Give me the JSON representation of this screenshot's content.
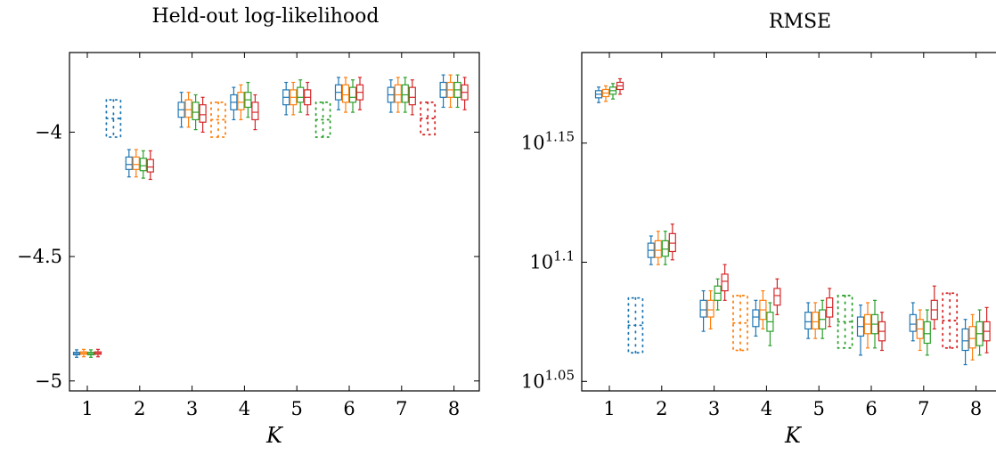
{
  "colors": {
    "c1": "#1f77b4",
    "c2": "#ff7f0e",
    "c3": "#2ca02c",
    "c4": "#d62728"
  },
  "chart_data": [
    {
      "type": "box",
      "title": "Held-out log-likelihood",
      "xlabel": "K",
      "ylabel": "",
      "xticks": [
        "1",
        "2",
        "3",
        "4",
        "5",
        "6",
        "7",
        "8"
      ],
      "yticks": [
        {
          "value": -4,
          "label": "−4"
        },
        {
          "value": -4.5,
          "label": "−4.5"
        },
        {
          "value": -5,
          "label": "−5"
        }
      ],
      "ylim": [
        -5.04,
        -3.68
      ],
      "groups": [
        {
          "k": 1,
          "boxes": [
            {
              "color": "c1",
              "q1": -4.895,
              "med": -4.89,
              "q3": -4.885,
              "lo": -4.905,
              "hi": -4.875
            },
            {
              "color": "c2",
              "q1": -4.893,
              "med": -4.888,
              "q3": -4.883,
              "lo": -4.903,
              "hi": -4.873
            },
            {
              "color": "c3",
              "q1": -4.895,
              "med": -4.89,
              "q3": -4.885,
              "lo": -4.905,
              "hi": -4.875
            },
            {
              "color": "c4",
              "q1": -4.893,
              "med": -4.888,
              "q3": -4.883,
              "lo": -4.903,
              "hi": -4.873
            }
          ]
        },
        {
          "k": 1.5,
          "dotted": true,
          "color": "c1",
          "lo": -4.02,
          "hi": -3.87
        },
        {
          "k": 2,
          "boxes": [
            {
              "color": "c1",
              "q1": -4.15,
              "med": -4.13,
              "q3": -4.1,
              "lo": -4.18,
              "hi": -4.07
            },
            {
              "color": "c2",
              "q1": -4.15,
              "med": -4.13,
              "q3": -4.1,
              "lo": -4.18,
              "hi": -4.07
            },
            {
              "color": "c3",
              "q1": -4.155,
              "med": -4.135,
              "q3": -4.105,
              "lo": -4.185,
              "hi": -4.075
            },
            {
              "color": "c4",
              "q1": -4.16,
              "med": -4.14,
              "q3": -4.11,
              "lo": -4.19,
              "hi": -4.075
            }
          ]
        },
        {
          "k": 3,
          "boxes": [
            {
              "color": "c1",
              "q1": -3.94,
              "med": -3.91,
              "q3": -3.88,
              "lo": -3.98,
              "hi": -3.84
            },
            {
              "color": "c2",
              "q1": -3.94,
              "med": -3.91,
              "q3": -3.87,
              "lo": -3.98,
              "hi": -3.84
            },
            {
              "color": "c3",
              "q1": -3.95,
              "med": -3.92,
              "q3": -3.88,
              "lo": -3.99,
              "hi": -3.85
            },
            {
              "color": "c4",
              "q1": -3.96,
              "med": -3.93,
              "q3": -3.89,
              "lo": -4.0,
              "hi": -3.86
            }
          ]
        },
        {
          "k": 3.5,
          "dotted": true,
          "color": "c2",
          "lo": -4.02,
          "hi": -3.88
        },
        {
          "k": 4,
          "boxes": [
            {
              "color": "c1",
              "q1": -3.91,
              "med": -3.88,
              "q3": -3.85,
              "lo": -3.95,
              "hi": -3.82
            },
            {
              "color": "c2",
              "q1": -3.91,
              "med": -3.88,
              "q3": -3.84,
              "lo": -3.95,
              "hi": -3.81
            },
            {
              "color": "c3",
              "q1": -3.9,
              "med": -3.87,
              "q3": -3.84,
              "lo": -3.94,
              "hi": -3.8
            },
            {
              "color": "c4",
              "q1": -3.95,
              "med": -3.92,
              "q3": -3.88,
              "lo": -3.99,
              "hi": -3.85
            }
          ]
        },
        {
          "k": 5,
          "boxes": [
            {
              "color": "c1",
              "q1": -3.89,
              "med": -3.86,
              "q3": -3.83,
              "lo": -3.93,
              "hi": -3.8
            },
            {
              "color": "c2",
              "q1": -3.89,
              "med": -3.86,
              "q3": -3.83,
              "lo": -3.93,
              "hi": -3.8
            },
            {
              "color": "c3",
              "q1": -3.88,
              "med": -3.86,
              "q3": -3.82,
              "lo": -3.92,
              "hi": -3.79
            },
            {
              "color": "c4",
              "q1": -3.89,
              "med": -3.86,
              "q3": -3.83,
              "lo": -3.93,
              "hi": -3.8
            }
          ]
        },
        {
          "k": 5.5,
          "dotted": true,
          "color": "c3",
          "lo": -4.02,
          "hi": -3.88
        },
        {
          "k": 6,
          "boxes": [
            {
              "color": "c1",
              "q1": -3.87,
              "med": -3.84,
              "q3": -3.81,
              "lo": -3.91,
              "hi": -3.78
            },
            {
              "color": "c2",
              "q1": -3.88,
              "med": -3.85,
              "q3": -3.81,
              "lo": -3.92,
              "hi": -3.78
            },
            {
              "color": "c3",
              "q1": -3.88,
              "med": -3.86,
              "q3": -3.82,
              "lo": -3.92,
              "hi": -3.79
            },
            {
              "color": "c4",
              "q1": -3.87,
              "med": -3.84,
              "q3": -3.81,
              "lo": -3.91,
              "hi": -3.78
            }
          ]
        },
        {
          "k": 7,
          "boxes": [
            {
              "color": "c1",
              "q1": -3.88,
              "med": -3.85,
              "q3": -3.82,
              "lo": -3.92,
              "hi": -3.79
            },
            {
              "color": "c2",
              "q1": -3.88,
              "med": -3.85,
              "q3": -3.81,
              "lo": -3.92,
              "hi": -3.78
            },
            {
              "color": "c3",
              "q1": -3.88,
              "med": -3.85,
              "q3": -3.81,
              "lo": -3.92,
              "hi": -3.78
            },
            {
              "color": "c4",
              "q1": -3.89,
              "med": -3.86,
              "q3": -3.82,
              "lo": -3.93,
              "hi": -3.79
            }
          ]
        },
        {
          "k": 7.5,
          "dotted": true,
          "color": "c4",
          "lo": -4.01,
          "hi": -3.88
        },
        {
          "k": 8,
          "boxes": [
            {
              "color": "c1",
              "q1": -3.86,
              "med": -3.83,
              "q3": -3.8,
              "lo": -3.9,
              "hi": -3.77
            },
            {
              "color": "c2",
              "q1": -3.86,
              "med": -3.83,
              "q3": -3.8,
              "lo": -3.9,
              "hi": -3.77
            },
            {
              "color": "c3",
              "q1": -3.86,
              "med": -3.83,
              "q3": -3.8,
              "lo": -3.9,
              "hi": -3.77
            },
            {
              "color": "c4",
              "q1": -3.87,
              "med": -3.84,
              "q3": -3.81,
              "lo": -3.91,
              "hi": -3.78
            }
          ]
        }
      ]
    },
    {
      "type": "box",
      "title": "RMSE",
      "xlabel": "K",
      "ylabel": "",
      "yscale": "log",
      "xticks": [
        "1",
        "2",
        "3",
        "4",
        "5",
        "6",
        "7",
        "8"
      ],
      "yticks": [
        {
          "value": 1.15,
          "base": "10",
          "exp": "1.15"
        },
        {
          "value": 1.1,
          "base": "10",
          "exp": "1.1"
        },
        {
          "value": 1.05,
          "base": "10",
          "exp": "1.05"
        }
      ],
      "ylim": [
        1.046,
        1.188
      ],
      "groups": [
        {
          "k": 1,
          "boxes": [
            {
              "color": "c1",
              "q1": 1.169,
              "med": 1.1705,
              "q3": 1.172,
              "lo": 1.167,
              "hi": 1.1735
            },
            {
              "color": "c2",
              "q1": 1.1695,
              "med": 1.171,
              "q3": 1.1725,
              "lo": 1.1675,
              "hi": 1.174
            },
            {
              "color": "c3",
              "q1": 1.1705,
              "med": 1.172,
              "q3": 1.1735,
              "lo": 1.1685,
              "hi": 1.175
            },
            {
              "color": "c4",
              "q1": 1.1725,
              "med": 1.174,
              "q3": 1.1755,
              "lo": 1.1705,
              "hi": 1.177
            }
          ]
        },
        {
          "k": 1.5,
          "dotted": true,
          "color": "c1",
          "lo": 1.062,
          "hi": 1.085
        },
        {
          "k": 2,
          "boxes": [
            {
              "color": "c1",
              "q1": 1.102,
              "med": 1.105,
              "q3": 1.108,
              "lo": 1.099,
              "hi": 1.111
            },
            {
              "color": "c2",
              "q1": 1.102,
              "med": 1.105,
              "q3": 1.109,
              "lo": 1.099,
              "hi": 1.113
            },
            {
              "color": "c3",
              "q1": 1.1025,
              "med": 1.1055,
              "q3": 1.109,
              "lo": 1.099,
              "hi": 1.113
            },
            {
              "color": "c4",
              "q1": 1.1045,
              "med": 1.108,
              "q3": 1.112,
              "lo": 1.101,
              "hi": 1.116
            }
          ]
        },
        {
          "k": 3,
          "boxes": [
            {
              "color": "c1",
              "q1": 1.077,
              "med": 1.08,
              "q3": 1.084,
              "lo": 1.071,
              "hi": 1.088
            },
            {
              "color": "c2",
              "q1": 1.077,
              "med": 1.08,
              "q3": 1.084,
              "lo": 1.072,
              "hi": 1.088
            },
            {
              "color": "c3",
              "q1": 1.084,
              "med": 1.087,
              "q3": 1.09,
              "lo": 1.08,
              "hi": 1.093
            },
            {
              "color": "c4",
              "q1": 1.088,
              "med": 1.092,
              "q3": 1.095,
              "lo": 1.084,
              "hi": 1.099
            }
          ]
        },
        {
          "k": 3.5,
          "dotted": true,
          "color": "c2",
          "lo": 1.063,
          "hi": 1.086
        },
        {
          "k": 4,
          "boxes": [
            {
              "color": "c1",
              "q1": 1.073,
              "med": 1.077,
              "q3": 1.08,
              "lo": 1.069,
              "hi": 1.084
            },
            {
              "color": "c2",
              "q1": 1.076,
              "med": 1.08,
              "q3": 1.084,
              "lo": 1.072,
              "hi": 1.088
            },
            {
              "color": "c3",
              "q1": 1.071,
              "med": 1.075,
              "q3": 1.079,
              "lo": 1.065,
              "hi": 1.083
            },
            {
              "color": "c4",
              "q1": 1.082,
              "med": 1.086,
              "q3": 1.089,
              "lo": 1.078,
              "hi": 1.093
            }
          ]
        },
        {
          "k": 5,
          "boxes": [
            {
              "color": "c1",
              "q1": 1.072,
              "med": 1.075,
              "q3": 1.079,
              "lo": 1.068,
              "hi": 1.083
            },
            {
              "color": "c2",
              "q1": 1.072,
              "med": 1.075,
              "q3": 1.079,
              "lo": 1.068,
              "hi": 1.083
            },
            {
              "color": "c3",
              "q1": 1.072,
              "med": 1.076,
              "q3": 1.08,
              "lo": 1.068,
              "hi": 1.084
            },
            {
              "color": "c4",
              "q1": 1.077,
              "med": 1.081,
              "q3": 1.085,
              "lo": 1.073,
              "hi": 1.089
            }
          ]
        },
        {
          "k": 5.5,
          "dotted": true,
          "color": "c3",
          "lo": 1.064,
          "hi": 1.086
        },
        {
          "k": 6,
          "boxes": [
            {
              "color": "c1",
              "q1": 1.069,
              "med": 1.073,
              "q3": 1.077,
              "lo": 1.061,
              "hi": 1.082
            },
            {
              "color": "c2",
              "q1": 1.07,
              "med": 1.074,
              "q3": 1.078,
              "lo": 1.064,
              "hi": 1.083
            },
            {
              "color": "c3",
              "q1": 1.07,
              "med": 1.074,
              "q3": 1.078,
              "lo": 1.064,
              "hi": 1.084
            },
            {
              "color": "c4",
              "q1": 1.067,
              "med": 1.071,
              "q3": 1.075,
              "lo": 1.063,
              "hi": 1.079
            }
          ]
        },
        {
          "k": 7,
          "boxes": [
            {
              "color": "c1",
              "q1": 1.071,
              "med": 1.074,
              "q3": 1.078,
              "lo": 1.067,
              "hi": 1.083
            },
            {
              "color": "c2",
              "q1": 1.068,
              "med": 1.072,
              "q3": 1.076,
              "lo": 1.063,
              "hi": 1.08
            },
            {
              "color": "c3",
              "q1": 1.066,
              "med": 1.07,
              "q3": 1.075,
              "lo": 1.061,
              "hi": 1.08
            },
            {
              "color": "c4",
              "q1": 1.076,
              "med": 1.08,
              "q3": 1.084,
              "lo": 1.072,
              "hi": 1.09
            }
          ]
        },
        {
          "k": 7.5,
          "dotted": true,
          "color": "c4",
          "lo": 1.064,
          "hi": 1.087
        },
        {
          "k": 8,
          "boxes": [
            {
              "color": "c1",
              "q1": 1.063,
              "med": 1.067,
              "q3": 1.072,
              "lo": 1.057,
              "hi": 1.076
            },
            {
              "color": "c2",
              "q1": 1.064,
              "med": 1.068,
              "q3": 1.073,
              "lo": 1.059,
              "hi": 1.078
            },
            {
              "color": "c3",
              "q1": 1.065,
              "med": 1.07,
              "q3": 1.075,
              "lo": 1.061,
              "hi": 1.08
            },
            {
              "color": "c4",
              "q1": 1.067,
              "med": 1.071,
              "q3": 1.075,
              "lo": 1.062,
              "hi": 1.081
            }
          ]
        }
      ]
    }
  ]
}
